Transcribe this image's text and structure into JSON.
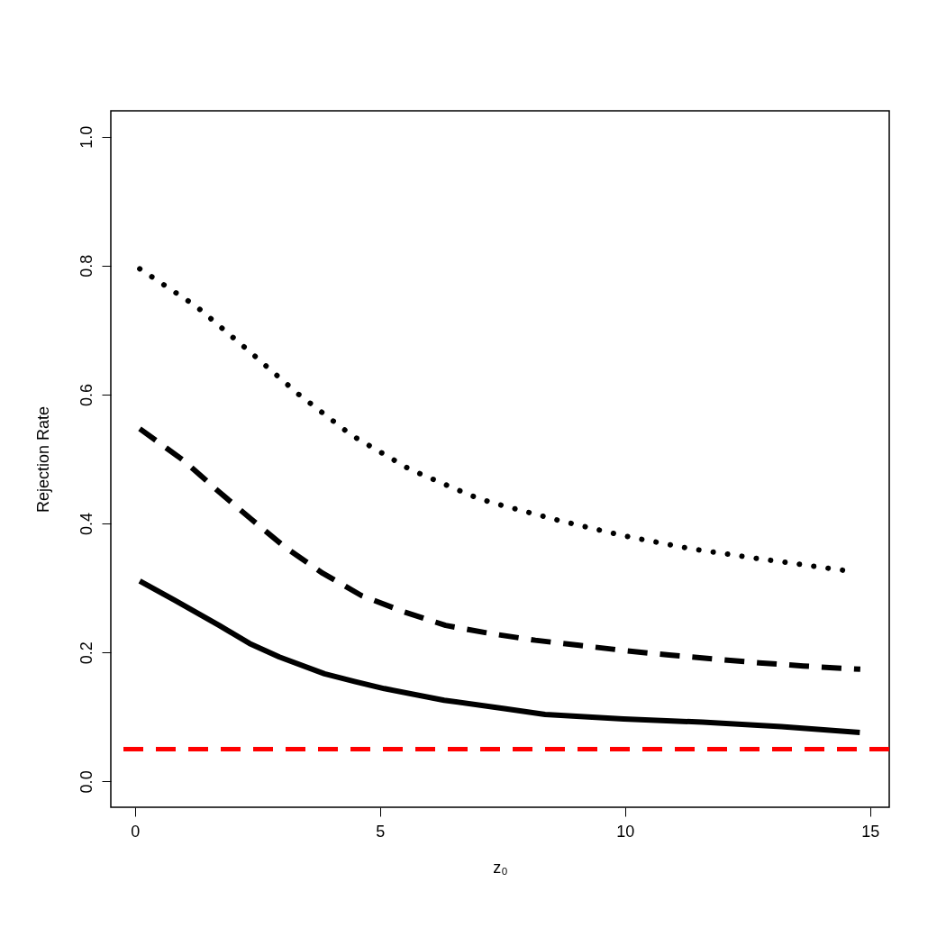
{
  "chart_data": {
    "type": "line",
    "xlabel": "z₀",
    "ylabel": "Rejection Rate",
    "xlim": [
      -0.49,
      15.39
    ],
    "ylim": [
      -0.04,
      1.04
    ],
    "xticks": [
      0,
      5,
      10,
      15
    ],
    "yticks": [
      {
        "value": 0,
        "label": "0.0"
      },
      0.2,
      0.4,
      0.6,
      0.8,
      {
        "value": 1,
        "label": "1.0"
      }
    ],
    "grid": false,
    "marker": "none",
    "series": [
      {
        "color": "#000000",
        "line_style": "solid",
        "x": [
          0.1,
          0.81,
          1.72,
          2.34,
          2.95,
          3.87,
          4.48,
          5.09,
          6.31,
          7.54,
          8.37,
          9.97,
          11.58,
          13.19,
          14.79
        ],
        "values": [
          0.311,
          0.281,
          0.242,
          0.214,
          0.193,
          0.167,
          0.155,
          0.144,
          0.126,
          0.113,
          0.104,
          0.097,
          0.092,
          0.085,
          0.076
        ]
      },
      {
        "color": "#000000",
        "line_style": "dashed",
        "x": [
          0.1,
          0.99,
          1.66,
          2.37,
          3.07,
          3.83,
          4.63,
          5.49,
          6.34,
          7.29,
          8.17,
          9.07,
          9.99,
          10.9,
          11.81,
          12.73,
          13.64,
          14.56,
          14.8
        ],
        "values": [
          0.547,
          0.498,
          0.453,
          0.407,
          0.363,
          0.323,
          0.288,
          0.263,
          0.242,
          0.229,
          0.219,
          0.211,
          0.203,
          0.196,
          0.19,
          0.184,
          0.179,
          0.175,
          0.174
        ]
      },
      {
        "color": "#000000",
        "line_style": "dotted",
        "x": [
          0.1,
          1.25,
          2.29,
          3.33,
          4.42,
          5.61,
          6.87,
          7.3,
          8.64,
          9.97,
          11.33,
          12.68,
          14.5
        ],
        "values": [
          0.795,
          0.737,
          0.67,
          0.601,
          0.537,
          0.484,
          0.443,
          0.432,
          0.405,
          0.381,
          0.361,
          0.346,
          0.327
        ]
      }
    ],
    "ref_lines": [
      {
        "axis": "y",
        "value": 0.05,
        "color": "#ff0000",
        "line_style": "dashed"
      }
    ]
  }
}
